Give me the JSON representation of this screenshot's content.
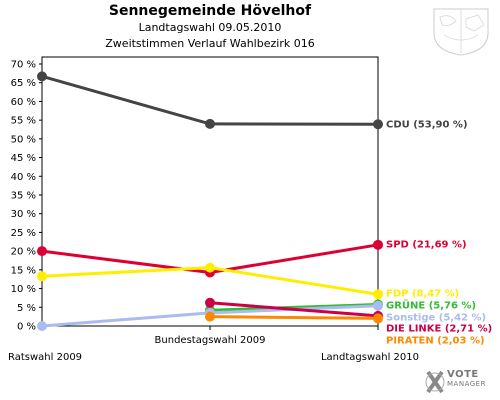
{
  "chart_data": {
    "type": "line",
    "title": "Sennegemeinde Hövelhof",
    "subtitle": "Landtagswahl 09.05.2010",
    "subtitle2": "Zweitstimmen Verlauf Wahlbezirk 016",
    "categories": [
      "Ratswahl 2009",
      "Bundestagswahl 2009",
      "Landtagswahl 2010"
    ],
    "ylim": [
      0,
      70
    ],
    "yticks": [
      "0 %",
      "5 %",
      "10 %",
      "15 %",
      "20 %",
      "25 %",
      "30 %",
      "35 %",
      "40 %",
      "45 %",
      "50 %",
      "55 %",
      "60 %",
      "65 %",
      "70 %"
    ],
    "grid": false,
    "series": [
      {
        "name": "CDU",
        "label": "CDU (53,90 %)",
        "color": "#444444",
        "values": [
          66.7,
          54.0,
          53.9
        ]
      },
      {
        "name": "SPD",
        "label": "SPD (21,69 %)",
        "color": "#dd0033",
        "values": [
          20.0,
          14.3,
          21.69
        ]
      },
      {
        "name": "FDP",
        "label": "FDP (8,47 %)",
        "color": "#ffee00",
        "values": [
          13.3,
          15.6,
          8.47
        ]
      },
      {
        "name": "GRÜNE",
        "label": "GRÜNE (5,76 %)",
        "color": "#33bb33",
        "values": [
          null,
          4.2,
          5.76
        ]
      },
      {
        "name": "Sonstige",
        "label": "Sonstige (5,42 %)",
        "color": "#aabbee",
        "values": [
          0.0,
          3.5,
          5.42
        ]
      },
      {
        "name": "DIE LINKE",
        "label": "DIE LINKE (2,71 %)",
        "color": "#cc0044",
        "values": [
          null,
          6.2,
          2.71
        ]
      },
      {
        "name": "PIRATEN",
        "label": "PIRATEN (2,03 %)",
        "color": "#ff8800",
        "values": [
          null,
          2.5,
          2.03
        ]
      }
    ]
  },
  "logo": {
    "text": "VOTE",
    "sub": "MANAGER"
  }
}
